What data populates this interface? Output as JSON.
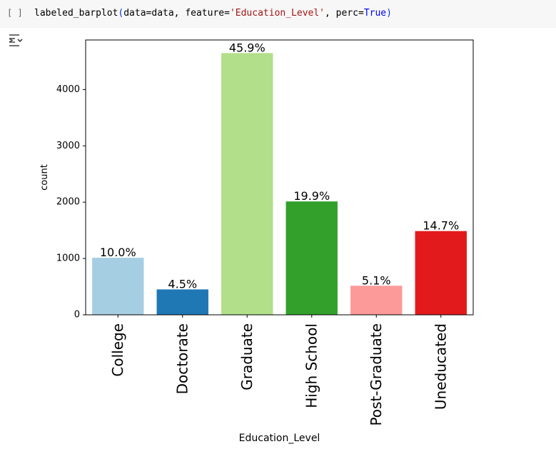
{
  "cell": {
    "run_bracket": "[ ]",
    "code": {
      "fn": "labeled_barplot",
      "open": "(",
      "arg1": "data=data, feature=",
      "str": "'Education_Level'",
      "arg2": ", perc=",
      "kw": "True",
      "close": ")"
    }
  },
  "output_icon": "output-toggle-icon",
  "chart_data": {
    "type": "bar",
    "categories": [
      "College",
      "Doctorate",
      "Graduate",
      "High School",
      "Post-Graduate",
      "Uneducated"
    ],
    "values": [
      1013,
      451,
      4647,
      2013,
      516,
      1487
    ],
    "data_labels": [
      "10.0%",
      "4.5%",
      "45.9%",
      "19.9%",
      "5.1%",
      "14.7%"
    ],
    "colors": [
      "#a6cee3",
      "#1f78b4",
      "#b2df8a",
      "#33a02c",
      "#fb9a99",
      "#e31a1c"
    ],
    "xlabel": "Education_Level",
    "ylabel": "count",
    "yticks": [
      0,
      1000,
      2000,
      3000,
      4000
    ],
    "ylim": [
      0,
      4880
    ],
    "grid": false,
    "legend": "none"
  }
}
